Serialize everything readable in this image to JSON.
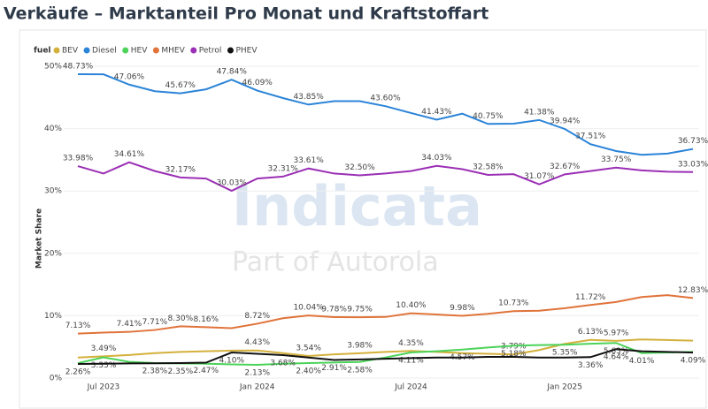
{
  "chart_data": {
    "type": "line",
    "title": "Verkäufe – Marktanteil Pro Monat und Kraftstoffart",
    "ylabel": "Market Share",
    "legend_title": "fuel",
    "legend": "top-left",
    "watermark": "Indicata",
    "watermark_sub": "Part of Autorola",
    "grid": true,
    "categories": [
      null,
      "Jul 2023",
      null,
      null,
      null,
      null,
      null,
      "Jan 2024",
      null,
      null,
      null,
      null,
      null,
      "Jul 2024",
      null,
      null,
      null,
      null,
      null,
      "Jan 2025",
      null,
      null,
      null,
      null,
      null
    ],
    "ylim": [
      0,
      50
    ],
    "yticks": [
      {
        "value": 0,
        "label": "0%"
      },
      {
        "value": 10,
        "label": "10%"
      },
      {
        "value": 20,
        "label": "20%"
      },
      {
        "value": 30,
        "label": "30%"
      },
      {
        "value": 40,
        "label": "40%"
      },
      {
        "value": 50,
        "label": "50%"
      }
    ],
    "series": [
      {
        "name": "BEV",
        "color": "#d4b03c",
        "values": [
          3.3,
          3.49,
          3.7,
          4.0,
          4.2,
          4.3,
          4.4,
          4.43,
          4.0,
          3.54,
          3.8,
          3.98,
          4.2,
          4.35,
          4.2,
          4.0,
          3.9,
          3.79,
          4.5,
          5.5,
          6.13,
          5.97,
          6.2,
          6.1,
          6.0
        ],
        "value_labels": [
          null,
          "3.49%",
          null,
          null,
          null,
          null,
          null,
          "4.43%",
          null,
          "3.54%",
          null,
          "3.98%",
          null,
          "4.35%",
          null,
          null,
          null,
          "3.79%",
          null,
          null,
          "6.13%",
          "5.97%",
          null,
          null,
          null
        ]
      },
      {
        "name": "Diesel",
        "color": "#2b84d8",
        "values": [
          48.73,
          48.7,
          47.06,
          46.0,
          45.67,
          46.3,
          47.84,
          46.09,
          44.9,
          43.85,
          44.4,
          44.4,
          43.6,
          42.5,
          41.43,
          42.4,
          40.75,
          40.8,
          41.38,
          39.94,
          37.51,
          36.4,
          35.8,
          36.0,
          36.73
        ],
        "value_labels": [
          "48.73%",
          null,
          "47.06%",
          null,
          "45.67%",
          null,
          "47.84%",
          "46.09%",
          null,
          "43.85%",
          null,
          null,
          "43.60%",
          null,
          "41.43%",
          null,
          "40.75%",
          null,
          "41.38%",
          "39.94%",
          "37.51%",
          null,
          null,
          null,
          "36.73%"
        ]
      },
      {
        "name": "HEV",
        "color": "#4cd35a",
        "values": [
          2.4,
          3.33,
          2.6,
          2.4,
          2.35,
          2.3,
          2.2,
          2.13,
          2.3,
          2.4,
          2.5,
          2.58,
          3.3,
          4.11,
          4.3,
          4.57,
          4.9,
          5.18,
          5.3,
          5.35,
          5.5,
          5.63,
          4.01,
          4.1,
          4.2
        ],
        "value_labels": [
          null,
          "3.33%",
          null,
          null,
          "2.35%",
          null,
          null,
          "2.13%",
          null,
          "2.40%",
          null,
          "2.58%",
          null,
          "4.11%",
          null,
          "4.57%",
          null,
          "5.18%",
          null,
          "5.35%",
          null,
          "5.63%",
          "4.01%",
          null,
          null
        ]
      },
      {
        "name": "MHEV",
        "color": "#e0733a",
        "values": [
          7.13,
          7.3,
          7.41,
          7.71,
          8.3,
          8.16,
          8.0,
          8.72,
          9.6,
          10.04,
          9.78,
          9.75,
          9.8,
          10.4,
          10.2,
          9.98,
          10.3,
          10.73,
          10.8,
          11.2,
          11.72,
          12.2,
          13.0,
          13.3,
          12.83
        ],
        "value_labels": [
          "7.13%",
          null,
          "7.41%",
          "7.71%",
          "8.30%",
          "8.16%",
          null,
          "8.72%",
          null,
          "10.04%",
          "9.78%",
          "9.75%",
          null,
          "10.40%",
          null,
          "9.98%",
          null,
          "10.73%",
          null,
          null,
          "11.72%",
          null,
          null,
          null,
          "12.83%"
        ]
      },
      {
        "name": "Petrol",
        "color": "#9b2fb5",
        "values": [
          33.98,
          32.8,
          34.61,
          33.2,
          32.17,
          32.0,
          30.03,
          32.0,
          32.31,
          33.61,
          32.8,
          32.5,
          32.8,
          33.2,
          34.03,
          33.5,
          32.58,
          32.7,
          31.07,
          32.67,
          33.2,
          33.75,
          33.3,
          33.1,
          33.03
        ],
        "value_labels": [
          "33.98%",
          null,
          "34.61%",
          null,
          "32.17%",
          null,
          "30.03%",
          null,
          "32.31%",
          "33.61%",
          null,
          "32.50%",
          null,
          null,
          "34.03%",
          null,
          "32.58%",
          null,
          "31.07%",
          "32.67%",
          null,
          "33.75%",
          null,
          null,
          "33.03%"
        ]
      },
      {
        "name": "PHEV",
        "color": "#111111",
        "values": [
          2.26,
          2.3,
          2.35,
          2.38,
          2.4,
          2.47,
          4.1,
          3.9,
          3.68,
          3.3,
          2.91,
          3.0,
          3.1,
          3.2,
          3.3,
          3.3,
          3.4,
          3.4,
          3.3,
          3.3,
          3.36,
          4.64,
          4.3,
          4.2,
          4.09
        ],
        "value_labels": [
          "2.26%",
          null,
          null,
          "2.38%",
          null,
          "2.47%",
          "4.10%",
          null,
          "3.68%",
          null,
          "2.91%",
          null,
          null,
          null,
          null,
          null,
          null,
          null,
          null,
          null,
          "3.36%",
          "4.64%",
          null,
          null,
          "4.09%"
        ]
      }
    ]
  }
}
